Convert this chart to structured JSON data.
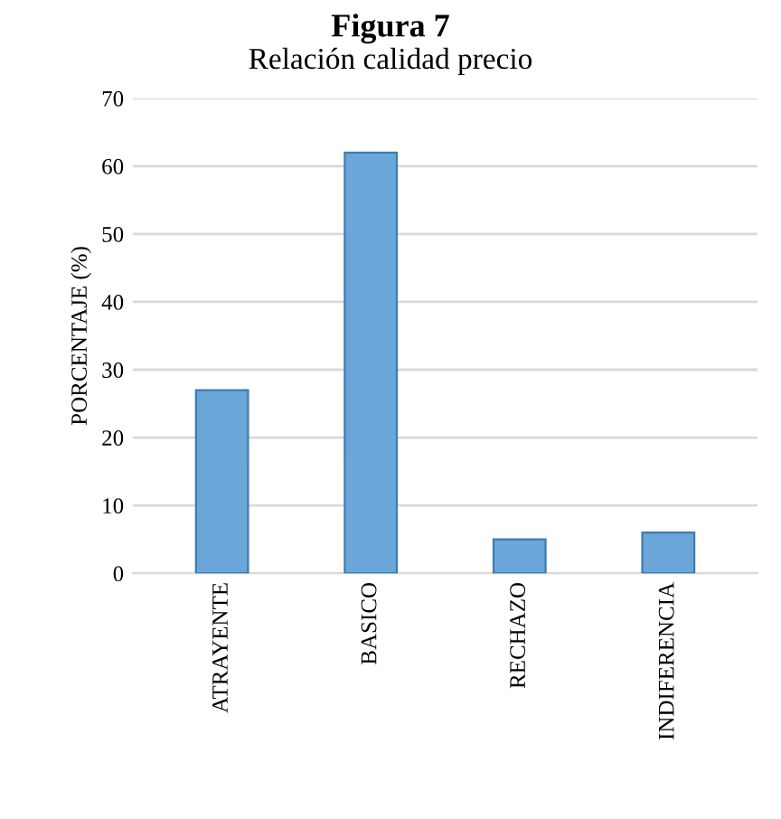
{
  "chart_data": {
    "type": "bar",
    "title": "Figura 7",
    "subtitle": "Relación calidad precio",
    "ylabel": "PORCENTAJE (%)",
    "categories": [
      "ATRAYENTE",
      "BASICO",
      "RECHAZO",
      "INDIFERENCIA"
    ],
    "values": [
      27,
      62,
      5,
      6
    ],
    "color": "#6aa6d8",
    "ylim": [
      0,
      70
    ],
    "yticks": [
      0,
      10,
      20,
      30,
      40,
      50,
      60,
      70
    ],
    "grid": "y"
  }
}
